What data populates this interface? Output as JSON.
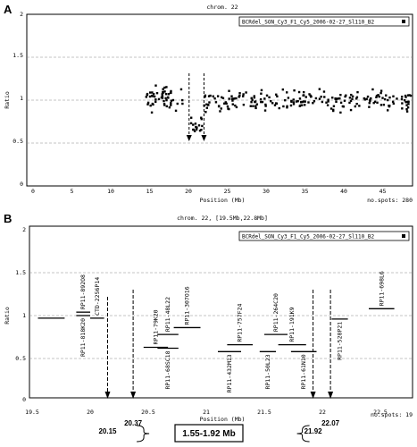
{
  "chart_data": [
    {
      "panel_label": "A",
      "type": "scatter",
      "title": "chrom. 22",
      "legend": "BCRdel_SON_Cy3_F1_Cy5_2006-02-27_Sl110_B2",
      "xlabel": "Position (Mb)",
      "ylabel": "Ratio",
      "xlim": [
        0,
        49
      ],
      "ylim": [
        0,
        2
      ],
      "xticks": [
        "0",
        "5",
        "10",
        "15",
        "20",
        "25",
        "30",
        "35",
        "40",
        "45"
      ],
      "yticks": [
        "0",
        "0.5",
        "1",
        "1.5",
        "2"
      ],
      "spots_label": "no.spots: 280",
      "grid": "dashed horizontal",
      "arrows_x": [
        20.15,
        22.07
      ],
      "point_groups": [
        {
          "x_start": 14.5,
          "x_end": 19.5,
          "n": 55,
          "mean": 1.03,
          "spread": 0.08
        },
        {
          "x_start": 20.2,
          "x_end": 21.9,
          "n": 16,
          "mean": 0.72,
          "spread": 0.06
        },
        {
          "x_start": 22.1,
          "x_end": 49,
          "n": 209,
          "mean": 1.0,
          "spread": 0.07
        }
      ]
    },
    {
      "panel_label": "B",
      "type": "segment",
      "title": "chrom. 22, [19.5Mb,22.8Mb]",
      "legend": "BCRdel_SON_Cy3_F1_Cy5_2006-02-27_Sl110_B2",
      "xlabel": "Position (Mb)",
      "ylabel": "Ratio",
      "xlim": [
        19.5,
        22.8
      ],
      "ylim": [
        0,
        2
      ],
      "xticks": [
        "19.5",
        "20",
        "20.5",
        "21",
        "21.5",
        "22",
        "22.5"
      ],
      "yticks": [
        "0",
        "0.5",
        "1",
        "1.5",
        "2"
      ],
      "spots_label": "no.spots: 19",
      "grid": "dashed horizontal",
      "clones": [
        {
          "name": "RP11-81 8K20",
          "start": 19.55,
          "end": 19.78,
          "y": 0.97,
          "label_side": "none"
        },
        {
          "name": "RP11-892O8",
          "start": 19.88,
          "end": 20.0,
          "y": 1.04,
          "label_side": "above"
        },
        {
          "name": "RP11-818K20",
          "start": 19.88,
          "end": 20.0,
          "y": 1.0,
          "label_side": "below"
        },
        {
          "name": "CTD-2256P14",
          "start": 20.0,
          "end": 20.12,
          "y": 0.97,
          "label_side": "above"
        },
        {
          "name": "RP11-79K20",
          "start": 20.46,
          "end": 20.67,
          "y": 0.63,
          "label_side": "above"
        },
        {
          "name": "RP11-68SC18",
          "start": 20.58,
          "end": 20.76,
          "y": 0.62,
          "label_side": "below"
        },
        {
          "name": "RP11-48L22",
          "start": 20.58,
          "end": 20.76,
          "y": 0.78,
          "label_side": "above"
        },
        {
          "name": "RP11-307O16",
          "start": 20.72,
          "end": 20.95,
          "y": 0.86,
          "label_side": "above"
        },
        {
          "name": "RP11-432M13",
          "start": 21.1,
          "end": 21.3,
          "y": 0.58,
          "label_side": "below"
        },
        {
          "name": "RP11-757F24",
          "start": 21.18,
          "end": 21.4,
          "y": 0.66,
          "label_side": "above"
        },
        {
          "name": "RP11-50L23",
          "start": 21.46,
          "end": 21.6,
          "y": 0.58,
          "label_side": "below"
        },
        {
          "name": "RP11-264C20",
          "start": 21.5,
          "end": 21.7,
          "y": 0.78,
          "label_side": "above"
        },
        {
          "name": "RP11-191K9",
          "start": 21.62,
          "end": 21.86,
          "y": 0.66,
          "label_side": "above"
        },
        {
          "name": "RP11-61N10",
          "start": 21.73,
          "end": 21.95,
          "y": 0.58,
          "label_side": "below"
        },
        {
          "name": "RP11-528P21",
          "start": 22.08,
          "end": 22.22,
          "y": 0.96,
          "label_side": "below"
        },
        {
          "name": "RP11-698L6",
          "start": 22.4,
          "end": 22.62,
          "y": 1.08,
          "label_side": "above"
        }
      ],
      "breakpoints": [
        {
          "x": 20.15,
          "label": "20.15"
        },
        {
          "x": 20.37,
          "label": "20.37"
        },
        {
          "x": 21.92,
          "label": "21.92"
        },
        {
          "x": 22.07,
          "label": "22.07"
        }
      ],
      "deletion_size": "1.55-1.92 Mb"
    }
  ]
}
